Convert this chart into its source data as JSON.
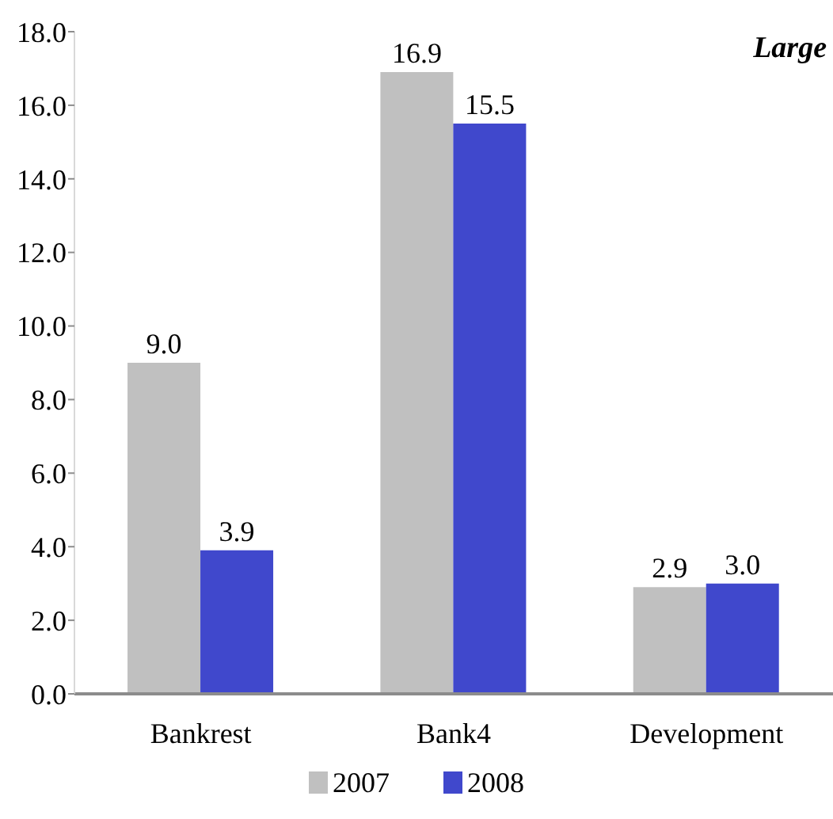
{
  "chart_data": {
    "type": "bar",
    "categories": [
      "Bankrest",
      "Bank4",
      "Development"
    ],
    "series": [
      {
        "name": "2007",
        "color": "#c0c0c0",
        "values": [
          9.0,
          16.9,
          2.9
        ],
        "value_labels": [
          "9.0",
          "16.9",
          "2.9"
        ]
      },
      {
        "name": "2008",
        "color": "#4048cc",
        "values": [
          3.9,
          15.5,
          3.0
        ],
        "value_labels": [
          "3.9",
          "15.5",
          "3.0"
        ]
      }
    ],
    "ylim": [
      0,
      18
    ],
    "yticks": [
      {
        "value": 0,
        "label": "0.0"
      },
      {
        "value": 2,
        "label": "2.0"
      },
      {
        "value": 4,
        "label": "4.0"
      },
      {
        "value": 6,
        "label": "6.0"
      },
      {
        "value": 8,
        "label": "8.0"
      },
      {
        "value": 10,
        "label": "10.0"
      },
      {
        "value": 12,
        "label": "12.0"
      },
      {
        "value": 14,
        "label": "14.0"
      },
      {
        "value": 16,
        "label": "16.0"
      },
      {
        "value": 18,
        "label": "18.0"
      }
    ],
    "legend": "bottom",
    "annotations": [
      "Large"
    ]
  }
}
